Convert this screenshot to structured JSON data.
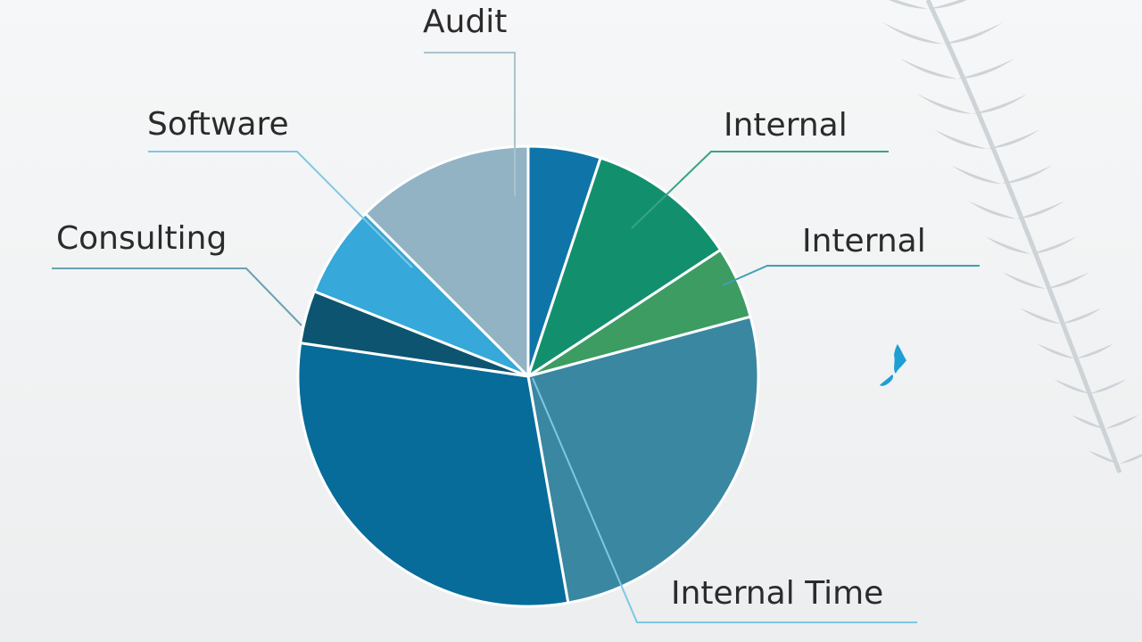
{
  "chart_data": {
    "type": "pie",
    "title": "",
    "start_angle_deg": 0,
    "direction": "clockwise",
    "slices": [
      {
        "label": "",
        "value": 5.5,
        "color": "#0f74a8"
      },
      {
        "label": "Internal",
        "value": 11.5,
        "color": "#12906e"
      },
      {
        "label": "Internal",
        "value": 5.5,
        "color": "#3c9c62"
      },
      {
        "label": "Internal Time",
        "value": 28.5,
        "color": "#3a87a2"
      },
      {
        "label": "",
        "value": 32.5,
        "color": "#076c9a"
      },
      {
        "label": "Consulting",
        "value": 4.0,
        "color": "#0d5470"
      },
      {
        "label": "Software",
        "value": 7.0,
        "color": "#36a8d9"
      },
      {
        "label": "Audit",
        "value": 13.5,
        "color": "#92b3c4"
      }
    ],
    "legend": "none"
  },
  "decorations": {
    "fern": "fern-leaf-icon",
    "map": "new-zealand-map-icon",
    "fern_color": "#c7ced2",
    "map_color": "#1e9fd4"
  }
}
